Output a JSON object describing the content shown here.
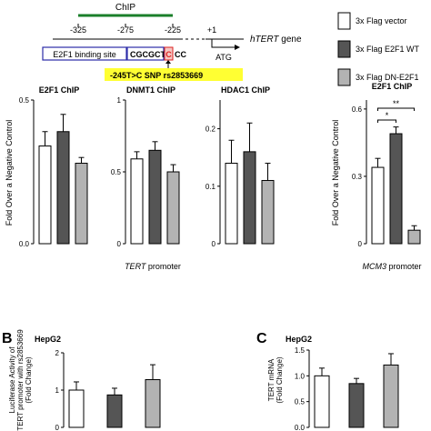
{
  "schematic": {
    "chip_label": "ChIP",
    "ticks": [
      "-325",
      "-275",
      "-225",
      "+1"
    ],
    "gene_label": "hTERT",
    "gene_suffix": " gene",
    "atg_label": "ATG",
    "binding_site_label": "E2F1 binding site",
    "seq_prefix": "CGCGCT",
    "seq_snp": "C",
    "seq_suffix": "CC",
    "snp_label": "-245T>C SNP rs2853669"
  },
  "legend": [
    {
      "name": "3x Flag vector",
      "color": "#ffffff"
    },
    {
      "name": "3x Flag E2F1 WT",
      "color": "#555555"
    },
    {
      "name": "3x Flag DN-E2F1",
      "color": "#b3b3b3"
    }
  ],
  "panel_a": {
    "ylabel": "Fold Over a Negative Control",
    "tert_group_label": "TERT",
    "tert_group_suffix": " promoter",
    "mcm3_group_label": "MCM3",
    "mcm3_group_suffix": " promoter"
  },
  "panel_b": {
    "letter": "B",
    "cell_line": "HepG2",
    "ylabel_lines": [
      "Luciferase Activity of",
      "TERT promoter with rs2853669",
      "(Fold Change)"
    ]
  },
  "panel_c": {
    "letter": "C",
    "cell_line": "HepG2",
    "ylabel_lines": [
      "TERT mRNA",
      "(Fold Change)"
    ]
  },
  "chart_data": [
    {
      "type": "bar",
      "title": "E2F1 ChIP",
      "categories": [
        "3x Flag vector",
        "3x Flag E2F1 WT",
        "3x Flag DN-E2F1"
      ],
      "values": [
        0.34,
        0.39,
        0.28
      ],
      "errors": [
        0.05,
        0.06,
        0.02
      ],
      "ylim": [
        0,
        0.5
      ],
      "yticks": [
        "0.0",
        "0.5"
      ],
      "colors": [
        "#ffffff",
        "#555555",
        "#b3b3b3"
      ]
    },
    {
      "type": "bar",
      "title": "DNMT1 ChIP",
      "categories": [
        "3x Flag vector",
        "3x Flag E2F1 WT",
        "3x Flag DN-E2F1"
      ],
      "values": [
        0.59,
        0.65,
        0.5
      ],
      "errors": [
        0.05,
        0.06,
        0.05
      ],
      "ylim": [
        0,
        1
      ],
      "yticks": [
        "0",
        "0.5",
        "1"
      ],
      "colors": [
        "#ffffff",
        "#555555",
        "#b3b3b3"
      ]
    },
    {
      "type": "bar",
      "title": "HDAC1 ChIP",
      "categories": [
        "3x Flag vector",
        "3x Flag E2F1 WT",
        "3x Flag DN-E2F1"
      ],
      "values": [
        0.14,
        0.16,
        0.11
      ],
      "errors": [
        0.04,
        0.05,
        0.03
      ],
      "ylim": [
        0,
        0.25
      ],
      "yticks": [
        "0",
        "0.1",
        "0.2"
      ],
      "colors": [
        "#ffffff",
        "#555555",
        "#b3b3b3"
      ]
    },
    {
      "type": "bar",
      "title": "E2F1 ChIP",
      "categories": [
        "3x Flag vector",
        "3x Flag E2F1 WT",
        "3x Flag DN-E2F1"
      ],
      "values": [
        0.34,
        0.49,
        0.06
      ],
      "errors": [
        0.04,
        0.03,
        0.02
      ],
      "ylim": [
        0,
        0.64
      ],
      "yticks": [
        "0",
        "0.3",
        "0.6"
      ],
      "colors": [
        "#ffffff",
        "#555555",
        "#b3b3b3"
      ],
      "significance": [
        {
          "pair": [
            0,
            1
          ],
          "label": "*"
        },
        {
          "pair": [
            0,
            2
          ],
          "label": "**"
        }
      ]
    },
    {
      "type": "bar",
      "title": "HepG2",
      "categories": [
        "3x Flag vector",
        "3x Flag E2F1 WT",
        "3x Flag DN-E2F1"
      ],
      "values": [
        1.0,
        0.87,
        1.28
      ],
      "errors": [
        0.22,
        0.18,
        0.4
      ],
      "ylim": [
        0,
        2
      ],
      "yticks": [
        "0",
        "1",
        "2"
      ],
      "colors": [
        "#ffffff",
        "#555555",
        "#b3b3b3"
      ]
    },
    {
      "type": "bar",
      "title": "HepG2",
      "categories": [
        "3x Flag vector",
        "3x Flag E2F1 WT",
        "3x Flag DN-E2F1"
      ],
      "values": [
        1.0,
        0.85,
        1.21
      ],
      "errors": [
        0.15,
        0.1,
        0.22
      ],
      "ylim": [
        0,
        1.5
      ],
      "yticks": [
        "0.0",
        "0.5",
        "1.0",
        "1.5"
      ],
      "colors": [
        "#ffffff",
        "#555555",
        "#b3b3b3"
      ]
    }
  ]
}
